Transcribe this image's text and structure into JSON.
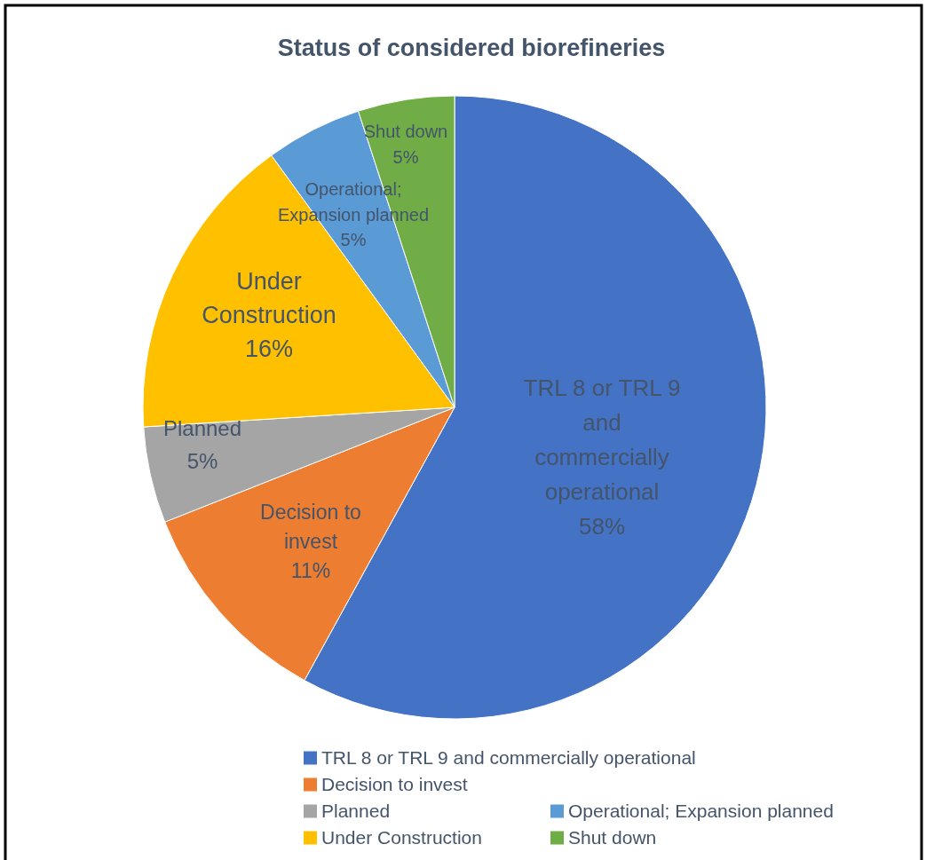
{
  "chart_data": {
    "type": "pie",
    "title": "Status of considered biorefineries",
    "categories": [
      "TRL 8 or TRL 9 and commercially operational",
      "Decision to invest",
      "Planned",
      "Under Construction",
      "Operational; Expansion planned",
      "Shut down"
    ],
    "values": [
      58,
      11,
      5,
      16,
      5,
      5
    ],
    "value_labels": [
      "58%",
      "11%",
      "5%",
      "16%",
      "5%",
      "5%"
    ],
    "colors": [
      "#4472c4",
      "#ed7d31",
      "#a5a5a5",
      "#ffc000",
      "#5b9bd5",
      "#70ad47"
    ],
    "legend": "bottom"
  }
}
